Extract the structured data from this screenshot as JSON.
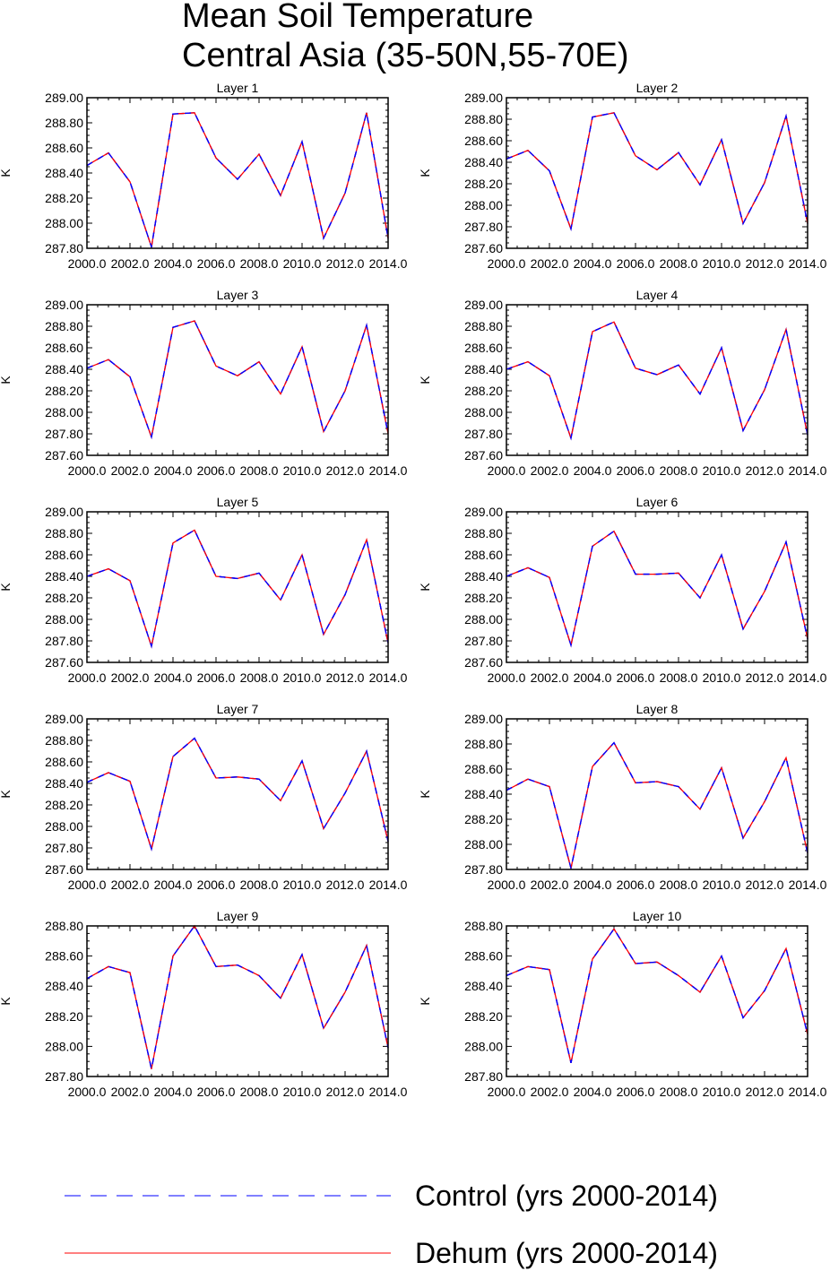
{
  "figure": {
    "title_line1": "Mean Soil Temperature",
    "title_line2": "Central Asia (35-50N,55-70E)"
  },
  "legend": [
    {
      "label": "Control (yrs 2000-2014)",
      "color": "#0000ff",
      "style": "dashed"
    },
    {
      "label": "Dehum (yrs 2000-2014)",
      "color": "#ff0000",
      "style": "solid"
    }
  ],
  "chart_data": [
    {
      "type": "line",
      "title": "Layer 1",
      "ylabel": "K",
      "xlim": [
        2000,
        2014
      ],
      "ylim": [
        287.8,
        289.0
      ],
      "yticks": [
        "287.80",
        "288.00",
        "288.20",
        "288.40",
        "288.60",
        "288.80",
        "289.00"
      ],
      "xticks": [
        "2000.0",
        "2002.0",
        "2004.0",
        "2006.0",
        "2008.0",
        "2010.0",
        "2012.0",
        "2014.0"
      ],
      "x": [
        2000,
        2001,
        2002,
        2003,
        2004,
        2005,
        2006,
        2007,
        2008,
        2009,
        2010,
        2011,
        2012,
        2013,
        2014
      ],
      "series": [
        {
          "name": "Control (yrs 2000-2014)",
          "values": [
            288.46,
            288.56,
            288.33,
            287.81,
            288.87,
            288.88,
            288.52,
            288.35,
            288.55,
            288.22,
            288.65,
            287.88,
            288.24,
            288.88,
            287.88
          ]
        },
        {
          "name": "Dehum (yrs 2000-2014)",
          "values": [
            288.46,
            288.56,
            288.33,
            287.81,
            288.87,
            288.88,
            288.52,
            288.35,
            288.55,
            288.22,
            288.65,
            287.88,
            288.24,
            288.88,
            287.88
          ]
        }
      ]
    },
    {
      "type": "line",
      "title": "Layer 2",
      "ylabel": "K",
      "xlim": [
        2000,
        2014
      ],
      "ylim": [
        287.6,
        289.0
      ],
      "yticks": [
        "287.60",
        "287.80",
        "288.00",
        "288.20",
        "288.40",
        "288.60",
        "288.80",
        "289.00"
      ],
      "xticks": [
        "2000.0",
        "2002.0",
        "2004.0",
        "2006.0",
        "2008.0",
        "2010.0",
        "2012.0",
        "2014.0"
      ],
      "x": [
        2000,
        2001,
        2002,
        2003,
        2004,
        2005,
        2006,
        2007,
        2008,
        2009,
        2010,
        2011,
        2012,
        2013,
        2014
      ],
      "series": [
        {
          "name": "Control (yrs 2000-2014)",
          "values": [
            288.43,
            288.51,
            288.32,
            287.78,
            288.82,
            288.86,
            288.46,
            288.33,
            288.49,
            288.19,
            288.61,
            287.83,
            288.21,
            288.83,
            287.83
          ]
        },
        {
          "name": "Dehum (yrs 2000-2014)",
          "values": [
            288.43,
            288.51,
            288.32,
            287.78,
            288.82,
            288.86,
            288.46,
            288.33,
            288.49,
            288.19,
            288.61,
            287.83,
            288.21,
            288.83,
            287.83
          ]
        }
      ]
    },
    {
      "type": "line",
      "title": "Layer 3",
      "ylabel": "K",
      "xlim": [
        2000,
        2014
      ],
      "ylim": [
        287.6,
        289.0
      ],
      "yticks": [
        "287.60",
        "287.80",
        "288.00",
        "288.20",
        "288.40",
        "288.60",
        "288.80",
        "289.00"
      ],
      "xticks": [
        "2000.0",
        "2002.0",
        "2004.0",
        "2006.0",
        "2008.0",
        "2010.0",
        "2012.0",
        "2014.0"
      ],
      "x": [
        2000,
        2001,
        2002,
        2003,
        2004,
        2005,
        2006,
        2007,
        2008,
        2009,
        2010,
        2011,
        2012,
        2013,
        2014
      ],
      "series": [
        {
          "name": "Control (yrs 2000-2014)",
          "values": [
            288.41,
            288.49,
            288.33,
            287.77,
            288.79,
            288.85,
            288.43,
            288.34,
            288.47,
            288.17,
            288.61,
            287.82,
            288.2,
            288.81,
            287.8
          ]
        },
        {
          "name": "Dehum (yrs 2000-2014)",
          "values": [
            288.41,
            288.49,
            288.33,
            287.77,
            288.79,
            288.85,
            288.43,
            288.34,
            288.47,
            288.17,
            288.61,
            287.82,
            288.2,
            288.81,
            287.8
          ]
        }
      ]
    },
    {
      "type": "line",
      "title": "Layer 4",
      "ylabel": "K",
      "xlim": [
        2000,
        2014
      ],
      "ylim": [
        287.6,
        289.0
      ],
      "yticks": [
        "287.60",
        "287.80",
        "288.00",
        "288.20",
        "288.40",
        "288.60",
        "288.80",
        "289.00"
      ],
      "xticks": [
        "2000.0",
        "2002.0",
        "2004.0",
        "2006.0",
        "2008.0",
        "2010.0",
        "2012.0",
        "2014.0"
      ],
      "x": [
        2000,
        2001,
        2002,
        2003,
        2004,
        2005,
        2006,
        2007,
        2008,
        2009,
        2010,
        2011,
        2012,
        2013,
        2014
      ],
      "series": [
        {
          "name": "Control (yrs 2000-2014)",
          "values": [
            288.4,
            288.47,
            288.34,
            287.76,
            288.75,
            288.84,
            288.41,
            288.35,
            288.44,
            288.17,
            288.6,
            287.83,
            288.21,
            288.77,
            287.79
          ]
        },
        {
          "name": "Dehum (yrs 2000-2014)",
          "values": [
            288.4,
            288.47,
            288.34,
            287.76,
            288.75,
            288.84,
            288.41,
            288.35,
            288.44,
            288.17,
            288.6,
            287.83,
            288.21,
            288.77,
            287.79
          ]
        }
      ]
    },
    {
      "type": "line",
      "title": "Layer 5",
      "ylabel": "K",
      "xlim": [
        2000,
        2014
      ],
      "ylim": [
        287.6,
        289.0
      ],
      "yticks": [
        "287.60",
        "287.80",
        "288.00",
        "288.20",
        "288.40",
        "288.60",
        "288.80",
        "289.00"
      ],
      "xticks": [
        "2000.0",
        "2002.0",
        "2004.0",
        "2006.0",
        "2008.0",
        "2010.0",
        "2012.0",
        "2014.0"
      ],
      "x": [
        2000,
        2001,
        2002,
        2003,
        2004,
        2005,
        2006,
        2007,
        2008,
        2009,
        2010,
        2011,
        2012,
        2013,
        2014
      ],
      "series": [
        {
          "name": "Control (yrs 2000-2014)",
          "values": [
            288.4,
            288.47,
            288.36,
            287.75,
            288.71,
            288.83,
            288.4,
            288.38,
            288.43,
            288.18,
            288.6,
            287.86,
            288.23,
            288.74,
            287.78
          ]
        },
        {
          "name": "Dehum (yrs 2000-2014)",
          "values": [
            288.4,
            288.47,
            288.36,
            287.75,
            288.71,
            288.83,
            288.4,
            288.38,
            288.43,
            288.18,
            288.6,
            287.86,
            288.23,
            288.74,
            287.78
          ]
        }
      ]
    },
    {
      "type": "line",
      "title": "Layer 6",
      "ylabel": "K",
      "xlim": [
        2000,
        2014
      ],
      "ylim": [
        287.6,
        289.0
      ],
      "yticks": [
        "287.60",
        "287.80",
        "288.00",
        "288.20",
        "288.40",
        "288.60",
        "288.80",
        "289.00"
      ],
      "xticks": [
        "2000.0",
        "2002.0",
        "2004.0",
        "2006.0",
        "2008.0",
        "2010.0",
        "2012.0",
        "2014.0"
      ],
      "x": [
        2000,
        2001,
        2002,
        2003,
        2004,
        2005,
        2006,
        2007,
        2008,
        2009,
        2010,
        2011,
        2012,
        2013,
        2014
      ],
      "series": [
        {
          "name": "Control (yrs 2000-2014)",
          "values": [
            288.4,
            288.48,
            288.39,
            287.76,
            288.68,
            288.82,
            288.42,
            288.42,
            288.43,
            288.2,
            288.6,
            287.91,
            288.26,
            288.72,
            287.82
          ]
        },
        {
          "name": "Dehum (yrs 2000-2014)",
          "values": [
            288.4,
            288.48,
            288.39,
            287.76,
            288.68,
            288.82,
            288.42,
            288.42,
            288.43,
            288.2,
            288.6,
            287.91,
            288.26,
            288.72,
            287.82
          ]
        }
      ]
    },
    {
      "type": "line",
      "title": "Layer 7",
      "ylabel": "K",
      "xlim": [
        2000,
        2014
      ],
      "ylim": [
        287.6,
        289.0
      ],
      "yticks": [
        "287.60",
        "287.80",
        "288.00",
        "288.20",
        "288.40",
        "288.60",
        "288.80",
        "289.00"
      ],
      "xticks": [
        "2000.0",
        "2002.0",
        "2004.0",
        "2006.0",
        "2008.0",
        "2010.0",
        "2012.0",
        "2014.0"
      ],
      "x": [
        2000,
        2001,
        2002,
        2003,
        2004,
        2005,
        2006,
        2007,
        2008,
        2009,
        2010,
        2011,
        2012,
        2013,
        2014
      ],
      "series": [
        {
          "name": "Control (yrs 2000-2014)",
          "values": [
            288.41,
            288.5,
            288.42,
            287.79,
            288.65,
            288.82,
            288.45,
            288.46,
            288.44,
            288.24,
            288.61,
            287.98,
            288.31,
            288.7,
            287.86
          ]
        },
        {
          "name": "Dehum (yrs 2000-2014)",
          "values": [
            288.41,
            288.5,
            288.42,
            287.79,
            288.65,
            288.82,
            288.45,
            288.46,
            288.44,
            288.24,
            288.61,
            287.98,
            288.31,
            288.7,
            287.86
          ]
        }
      ]
    },
    {
      "type": "line",
      "title": "Layer 8",
      "ylabel": "K",
      "xlim": [
        2000,
        2014
      ],
      "ylim": [
        287.8,
        289.0
      ],
      "yticks": [
        "287.80",
        "288.00",
        "288.20",
        "288.40",
        "288.60",
        "288.80",
        "289.00"
      ],
      "xticks": [
        "2000.0",
        "2002.0",
        "2004.0",
        "2006.0",
        "2008.0",
        "2010.0",
        "2012.0",
        "2014.0"
      ],
      "x": [
        2000,
        2001,
        2002,
        2003,
        2004,
        2005,
        2006,
        2007,
        2008,
        2009,
        2010,
        2011,
        2012,
        2013,
        2014
      ],
      "series": [
        {
          "name": "Control (yrs 2000-2014)",
          "values": [
            288.43,
            288.52,
            288.46,
            287.81,
            288.62,
            288.81,
            288.49,
            288.5,
            288.46,
            288.28,
            288.61,
            288.05,
            288.34,
            288.69,
            287.93
          ]
        },
        {
          "name": "Dehum (yrs 2000-2014)",
          "values": [
            288.43,
            288.52,
            288.46,
            287.81,
            288.62,
            288.81,
            288.49,
            288.5,
            288.46,
            288.28,
            288.61,
            288.05,
            288.34,
            288.69,
            287.93
          ]
        }
      ]
    },
    {
      "type": "line",
      "title": "Layer 9",
      "ylabel": "K",
      "xlim": [
        2000,
        2014
      ],
      "ylim": [
        287.8,
        288.8
      ],
      "yticks": [
        "287.80",
        "288.00",
        "288.20",
        "288.40",
        "288.60",
        "288.80"
      ],
      "xticks": [
        "2000.0",
        "2002.0",
        "2004.0",
        "2006.0",
        "2008.0",
        "2010.0",
        "2012.0",
        "2014.0"
      ],
      "x": [
        2000,
        2001,
        2002,
        2003,
        2004,
        2005,
        2006,
        2007,
        2008,
        2009,
        2010,
        2011,
        2012,
        2013,
        2014
      ],
      "series": [
        {
          "name": "Control (yrs 2000-2014)",
          "values": [
            288.45,
            288.53,
            288.49,
            287.85,
            288.6,
            288.8,
            288.53,
            288.54,
            288.47,
            288.32,
            288.61,
            288.12,
            288.36,
            288.67,
            287.99
          ]
        },
        {
          "name": "Dehum (yrs 2000-2014)",
          "values": [
            288.45,
            288.53,
            288.49,
            287.85,
            288.6,
            288.8,
            288.53,
            288.54,
            288.47,
            288.32,
            288.61,
            288.12,
            288.36,
            288.67,
            287.99
          ]
        }
      ]
    },
    {
      "type": "line",
      "title": "Layer 10",
      "ylabel": "K",
      "xlim": [
        2000,
        2014
      ],
      "ylim": [
        287.8,
        288.8
      ],
      "yticks": [
        "287.80",
        "288.00",
        "288.20",
        "288.40",
        "288.60",
        "288.80"
      ],
      "xticks": [
        "2000.0",
        "2002.0",
        "2004.0",
        "2006.0",
        "2008.0",
        "2010.0",
        "2012.0",
        "2014.0"
      ],
      "x": [
        2000,
        2001,
        2002,
        2003,
        2004,
        2005,
        2006,
        2007,
        2008,
        2009,
        2010,
        2011,
        2012,
        2013,
        2014
      ],
      "series": [
        {
          "name": "Control (yrs 2000-2014)",
          "values": [
            288.47,
            288.53,
            288.51,
            287.89,
            288.58,
            288.78,
            288.55,
            288.56,
            288.47,
            288.36,
            288.6,
            288.19,
            288.37,
            288.65,
            288.08
          ]
        },
        {
          "name": "Dehum (yrs 2000-2014)",
          "values": [
            288.47,
            288.53,
            288.51,
            287.89,
            288.58,
            288.78,
            288.55,
            288.56,
            288.47,
            288.36,
            288.6,
            288.19,
            288.37,
            288.65,
            288.08
          ]
        }
      ]
    }
  ]
}
